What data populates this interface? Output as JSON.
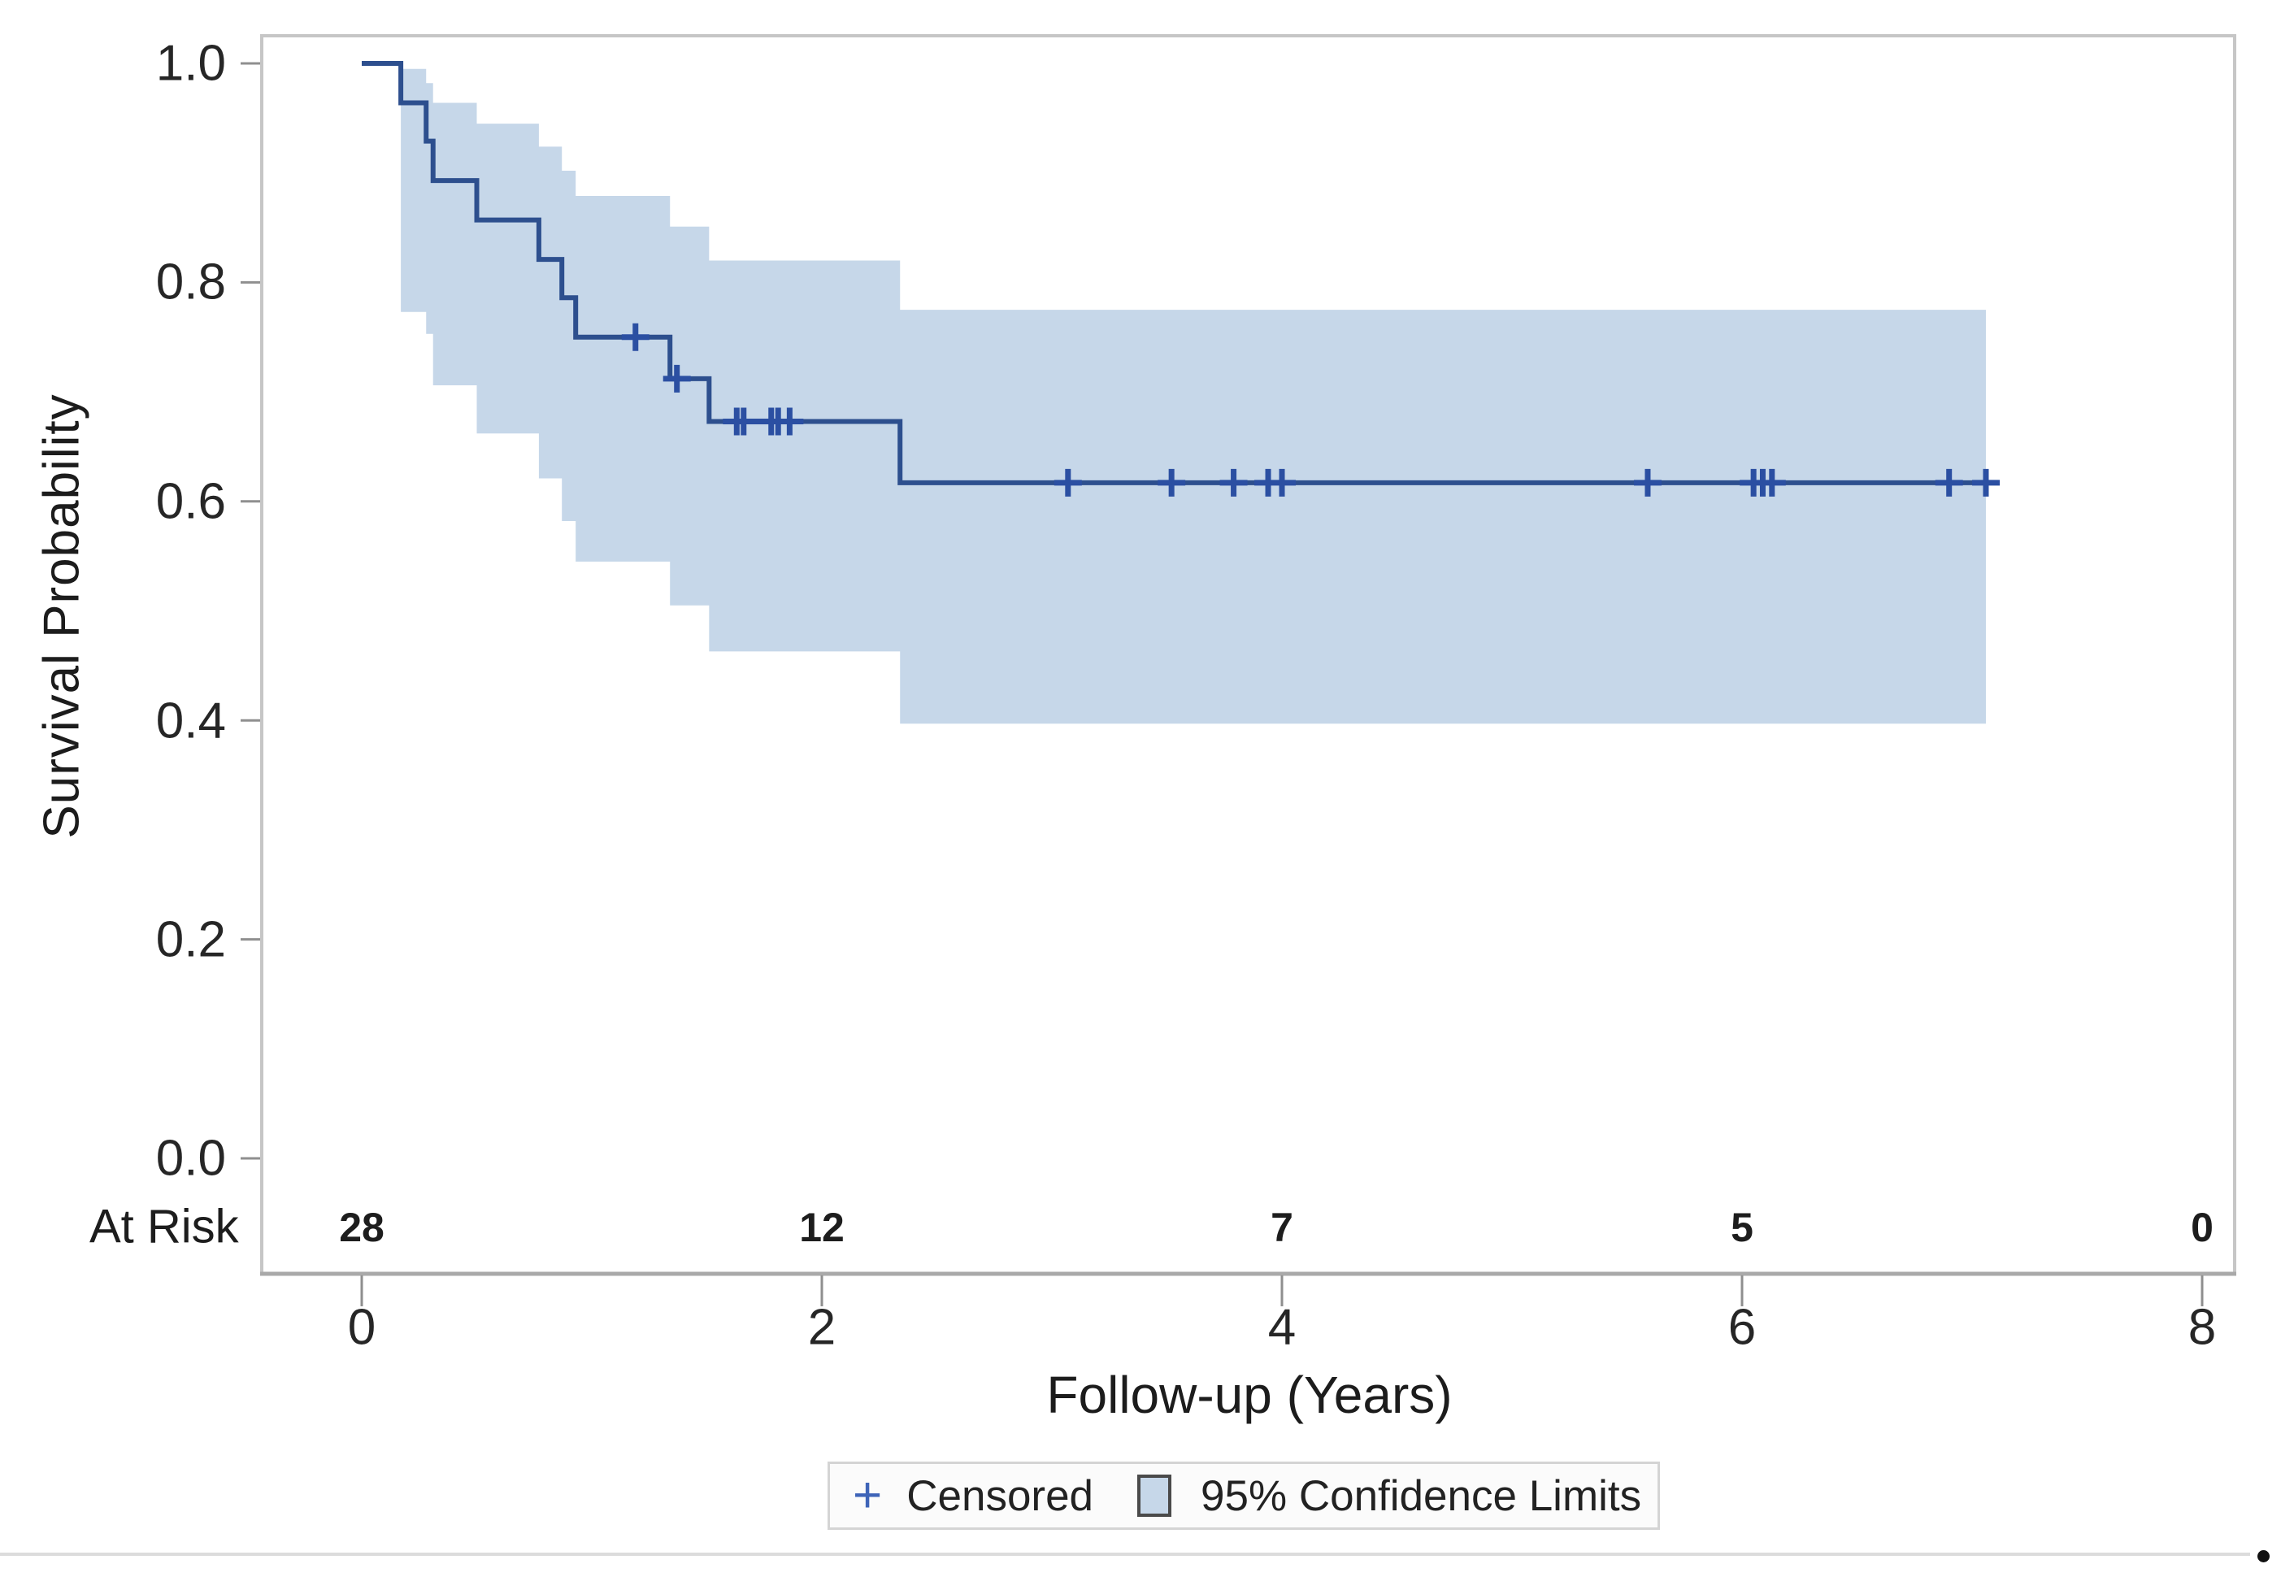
{
  "page": {
    "background": "#ffffff"
  },
  "colors": {
    "curve": "#2d4f8e",
    "censor": "#2b4fa2",
    "ci_band": "#c6d7e9",
    "frame": "#c6c6c6",
    "axis_line": "#a9a9a9",
    "tick": "#8f8f8f"
  },
  "chart_data": {
    "type": "line",
    "subtype": "kaplan_meier_step",
    "title": "",
    "xlabel": "Follow-up (Years)",
    "ylabel": "Survival Probability",
    "xlim": [
      0,
      8
    ],
    "ylim": [
      0.0,
      1.0
    ],
    "grid": false,
    "legend_position": "bottom-center",
    "x_ticks": [
      "0",
      "2",
      "4",
      "6",
      "8"
    ],
    "x_tick_values": [
      0,
      2,
      4,
      6,
      8
    ],
    "y_ticks": [
      "1.0",
      "0.8",
      "0.6",
      "0.4",
      "0.2",
      "0.0"
    ],
    "y_tick_values": [
      1.0,
      0.8,
      0.6,
      0.4,
      0.2,
      0.0
    ],
    "series": [
      {
        "name": "Survival",
        "steps": [
          {
            "t": 0.0,
            "s": 1.0
          },
          {
            "t": 0.17,
            "s": 0.964
          },
          {
            "t": 0.28,
            "s": 0.929
          },
          {
            "t": 0.31,
            "s": 0.893
          },
          {
            "t": 0.5,
            "s": 0.857
          },
          {
            "t": 0.77,
            "s": 0.821
          },
          {
            "t": 0.87,
            "s": 0.786
          },
          {
            "t": 0.93,
            "s": 0.75
          },
          {
            "t": 1.34,
            "s": 0.712
          },
          {
            "t": 1.51,
            "s": 0.673
          },
          {
            "t": 2.34,
            "s": 0.617
          }
        ],
        "end_time": 7.12
      }
    ],
    "censor_times": [
      {
        "t": 1.19,
        "s": 0.75
      },
      {
        "t": 1.37,
        "s": 0.712
      },
      {
        "t": 1.63,
        "s": 0.673
      },
      {
        "t": 1.66,
        "s": 0.673
      },
      {
        "t": 1.78,
        "s": 0.673
      },
      {
        "t": 1.81,
        "s": 0.673
      },
      {
        "t": 1.86,
        "s": 0.673
      },
      {
        "t": 3.07,
        "s": 0.617
      },
      {
        "t": 3.52,
        "s": 0.617
      },
      {
        "t": 3.79,
        "s": 0.617
      },
      {
        "t": 3.94,
        "s": 0.617
      },
      {
        "t": 4.0,
        "s": 0.617
      },
      {
        "t": 5.59,
        "s": 0.617
      },
      {
        "t": 6.05,
        "s": 0.617
      },
      {
        "t": 6.09,
        "s": 0.617
      },
      {
        "t": 6.13,
        "s": 0.617
      },
      {
        "t": 6.9,
        "s": 0.617
      },
      {
        "t": 7.06,
        "s": 0.617
      }
    ],
    "confidence_intervals": [
      {
        "from": 0.17,
        "to": 0.28,
        "upper": 0.995,
        "lower": 0.773
      },
      {
        "from": 0.28,
        "to": 0.31,
        "upper": 0.982,
        "lower": 0.753
      },
      {
        "from": 0.31,
        "to": 0.5,
        "upper": 0.964,
        "lower": 0.706
      },
      {
        "from": 0.5,
        "to": 0.77,
        "upper": 0.945,
        "lower": 0.662
      },
      {
        "from": 0.77,
        "to": 0.87,
        "upper": 0.924,
        "lower": 0.621
      },
      {
        "from": 0.87,
        "to": 0.93,
        "upper": 0.902,
        "lower": 0.582
      },
      {
        "from": 0.93,
        "to": 1.34,
        "upper": 0.879,
        "lower": 0.545
      },
      {
        "from": 1.34,
        "to": 1.51,
        "upper": 0.851,
        "lower": 0.505
      },
      {
        "from": 1.51,
        "to": 2.34,
        "upper": 0.82,
        "lower": 0.463
      },
      {
        "from": 2.34,
        "to": 7.06,
        "upper": 0.775,
        "lower": 0.397
      }
    ]
  },
  "at_risk": {
    "label": "At Risk",
    "counts": [
      "28",
      "12",
      "7",
      "5",
      "0"
    ]
  },
  "legend": {
    "plus_symbol": "+",
    "censored_label": "Censored",
    "ci_label": "95% Confidence Limits"
  }
}
